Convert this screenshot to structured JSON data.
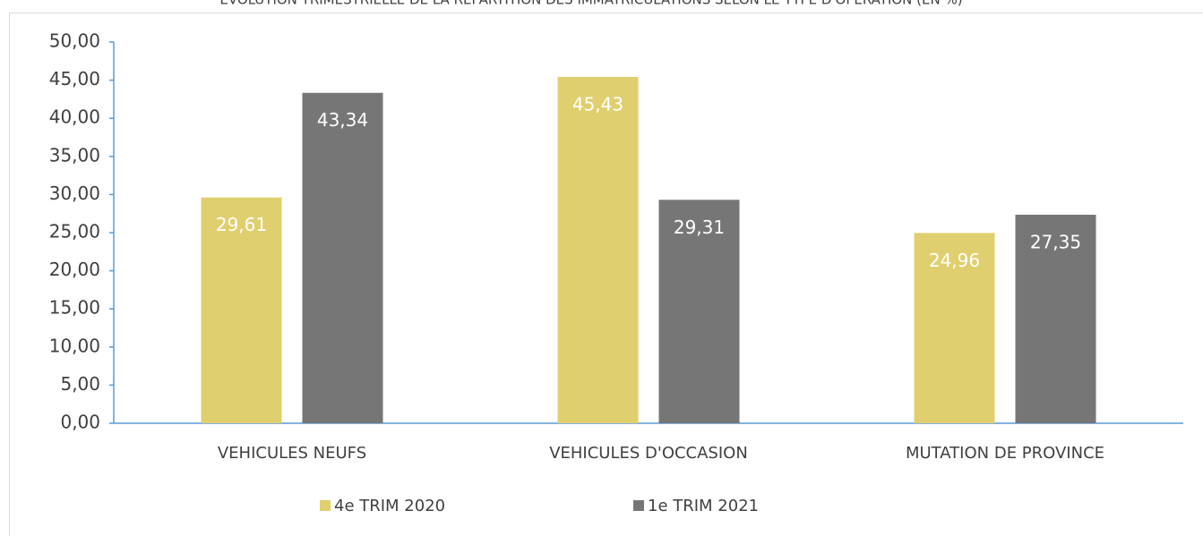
{
  "chart_data": {
    "type": "bar",
    "title": "EVOLUTION TRIMESTRIELLE DE LA REPARTITION DES IMMATRICULATIONS SELON LE TYPE D'OPERATION (EN %)",
    "categories": [
      "VEHICULES NEUFS",
      "VEHICULES D'OCCASION",
      "MUTATION DE PROVINCE"
    ],
    "series": [
      {
        "name": "4e TRIM 2020",
        "color": "#e0cf6e",
        "values": [
          29.61,
          45.43,
          24.96
        ],
        "value_labels": [
          "29,61",
          "45,43",
          "24,96"
        ]
      },
      {
        "name": "1e TRIM 2021",
        "color": "#767676",
        "values": [
          43.34,
          29.31,
          27.35
        ],
        "value_labels": [
          "43,34",
          "29,31",
          "27,35"
        ]
      }
    ],
    "ylim": [
      0,
      50
    ],
    "yticks": [
      {
        "value": 0,
        "label": "0,00"
      },
      {
        "value": 5,
        "label": "5,00"
      },
      {
        "value": 10,
        "label": "10,00"
      },
      {
        "value": 15,
        "label": "15,00"
      },
      {
        "value": 20,
        "label": "20,00"
      },
      {
        "value": 25,
        "label": "25,00"
      },
      {
        "value": 30,
        "label": "30,00"
      },
      {
        "value": 35,
        "label": "35,00"
      },
      {
        "value": 40,
        "label": "40,00"
      },
      {
        "value": 45,
        "label": "45,00"
      },
      {
        "value": 50,
        "label": "50,00"
      }
    ],
    "grid": false,
    "legend": "bottom"
  }
}
